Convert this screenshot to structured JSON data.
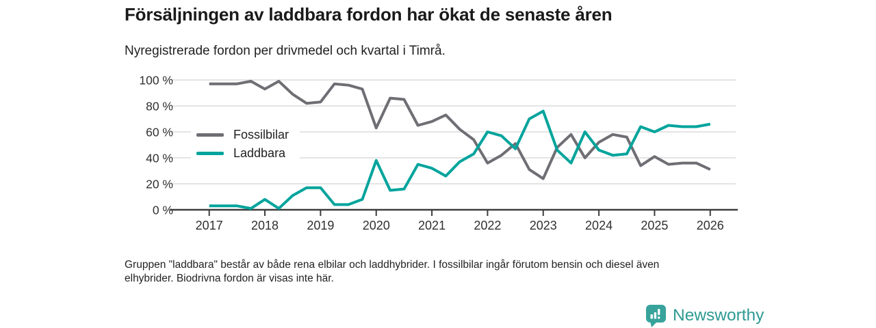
{
  "header": {
    "title": "Försäljningen av laddbara fordon har ökat de senaste åren",
    "subtitle": "Nyregistrerade fordon per drivmedel och kvartal i Timrå."
  },
  "footer": {
    "line1": "Gruppen \"laddbara\" består av både rena elbilar och laddhybrider. I fossilbilar ingår förutom bensin och diesel även",
    "line2": "elhybrider. Biodrivna fordon är visas inte här."
  },
  "brand": {
    "name": "Newsworthy",
    "text_color": "#2d9a93",
    "icon": "bar-chart-pin-icon",
    "icon_color": "#38a39b"
  },
  "chart_data": {
    "type": "line",
    "title": "Försäljningen av laddbara fordon har ökat de senaste åren",
    "subtitle": "Nyregistrerade fordon per drivmedel och kvartal i Timrå.",
    "unit": "%",
    "x_start": "2017 Q1",
    "x_step": "quarter",
    "x_end": "2026 Q1",
    "x_tick_labels": [
      "2017",
      "2018",
      "2019",
      "2020",
      "2021",
      "2022",
      "2023",
      "2024",
      "2025",
      "2026"
    ],
    "y_tick_values": [
      0,
      20,
      40,
      60,
      80,
      100
    ],
    "y_tick_labels": [
      "0 %",
      "20 %",
      "40 %",
      "60 %",
      "80 %",
      "100 %"
    ],
    "ylim": [
      0,
      100
    ],
    "grid": "horizontal",
    "grid_color": "#dcdcdc",
    "axis_color": "#3d3d3d",
    "tick_text_color": "#303030",
    "legend_position": "inside-left",
    "series": [
      {
        "name": "Fossilbilar",
        "color": "#6e6e74",
        "values": [
          97,
          97,
          97,
          99,
          93,
          99,
          89,
          82,
          83,
          97,
          96,
          93,
          63,
          86,
          85,
          65,
          68,
          73,
          62,
          54,
          36,
          42,
          51,
          31,
          24,
          48,
          58,
          40,
          52,
          58,
          56,
          34,
          41,
          35,
          36,
          36,
          31
        ]
      },
      {
        "name": "Laddbara",
        "color": "#00a49c",
        "values": [
          3,
          3,
          3,
          1,
          8,
          1,
          11,
          17,
          17,
          4,
          4,
          8,
          38,
          15,
          16,
          35,
          32,
          26,
          37,
          43,
          60,
          57,
          47,
          70,
          76,
          46,
          36,
          60,
          46,
          42,
          43,
          64,
          60,
          65,
          64,
          64,
          66
        ]
      }
    ]
  }
}
